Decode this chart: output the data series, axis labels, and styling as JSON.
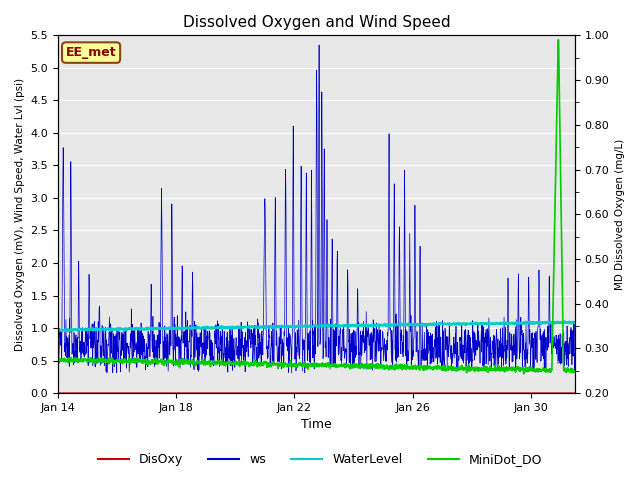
{
  "title": "Dissolved Oxygen and Wind Speed",
  "xlabel": "Time",
  "ylabel_left": "Dissolved Oxygen (mV), Wind Speed, Water Lvl (psi)",
  "ylabel_right": "MD Dissolved Oxygen (mg/L)",
  "ylim_left": [
    0.0,
    5.5
  ],
  "ylim_right": [
    0.2,
    1.0
  ],
  "yticks_left": [
    0.0,
    0.5,
    1.0,
    1.5,
    2.0,
    2.5,
    3.0,
    3.5,
    4.0,
    4.5,
    5.0,
    5.5
  ],
  "yticks_right": [
    0.2,
    0.3,
    0.4,
    0.5,
    0.6,
    0.7,
    0.8,
    0.9,
    1.0
  ],
  "colors": {
    "DisOxy": "#cc0000",
    "ws": "#0000cc",
    "WaterLevel": "#00cccc",
    "MiniDot_DO": "#00cc00"
  },
  "annotation_text": "EE_met",
  "annotation_bg": "#ffff99",
  "annotation_edge": "#8b4513",
  "plot_bg": "#e8e8e8",
  "grid_color": "#ffffff",
  "figsize": [
    6.4,
    4.8
  ],
  "dpi": 100
}
